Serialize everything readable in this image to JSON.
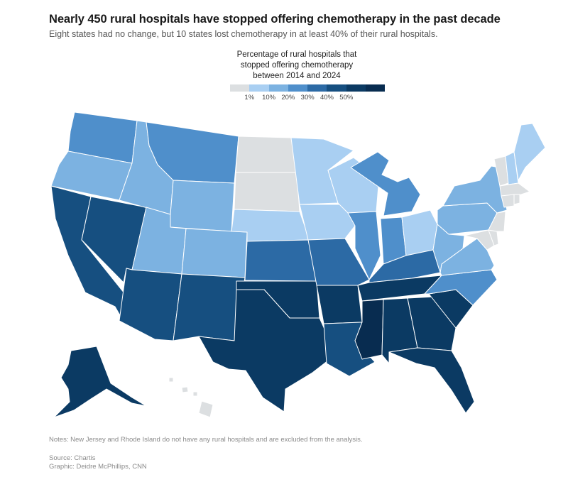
{
  "headline": "Nearly 450 rural hospitals have stopped offering chemotherapy in the past decade",
  "subhead": "Eight states had no change, but 10 states lost chemotherapy in at least 40% of their rural hospitals.",
  "legend": {
    "title_line1": "Percentage of rural hospitals that",
    "title_line2": "stopped offering chemotherapy",
    "title_line3": "between 2014 and 2024",
    "colors": [
      "#dcdfe1",
      "#a9cff2",
      "#7cb2e1",
      "#4f8fcb",
      "#2c6aa5",
      "#164f80",
      "#0b3a63",
      "#082c50"
    ],
    "ticks": [
      "1%",
      "10%",
      "20%",
      "30%",
      "40%",
      "50%"
    ]
  },
  "map_data": {
    "bins": [
      "0%",
      "1-10%",
      "10-20%",
      "20-30%",
      "30-40%",
      "40-50%",
      "50%+",
      "max"
    ],
    "states": {
      "WA": 3,
      "OR": 2,
      "CA": 5,
      "NV": 5,
      "ID": 2,
      "MT": 3,
      "WY": 2,
      "UT": 2,
      "AZ": 5,
      "CO": 2,
      "NM": 5,
      "ND": 0,
      "SD": 0,
      "NE": 1,
      "KS": 4,
      "OK": 6,
      "TX": 6,
      "MN": 1,
      "IA": 1,
      "MO": 4,
      "AR": 6,
      "LA": 5,
      "WI": 1,
      "IL": 3,
      "MI": 3,
      "IN": 3,
      "OH": 1,
      "KY": 4,
      "TN": 6,
      "MS": 7,
      "AL": 6,
      "GA": 6,
      "FL": 6,
      "SC": 6,
      "NC": 3,
      "VA": 2,
      "WV": 2,
      "PA": 2,
      "NY": 2,
      "MD": 0,
      "DE": 0,
      "NJ": 0,
      "VT": 0,
      "NH": 1,
      "ME": 1,
      "MA": 0,
      "CT": 0,
      "RI": 0,
      "AK": 6,
      "HI": 0
    }
  },
  "footer": {
    "note": "Notes: New Jersey and Rhode Island do not have any rural hospitals and are excluded from the analysis.",
    "source": "Source: Chartis",
    "credit": "Graphic: Deidre McPhillips, CNN"
  }
}
